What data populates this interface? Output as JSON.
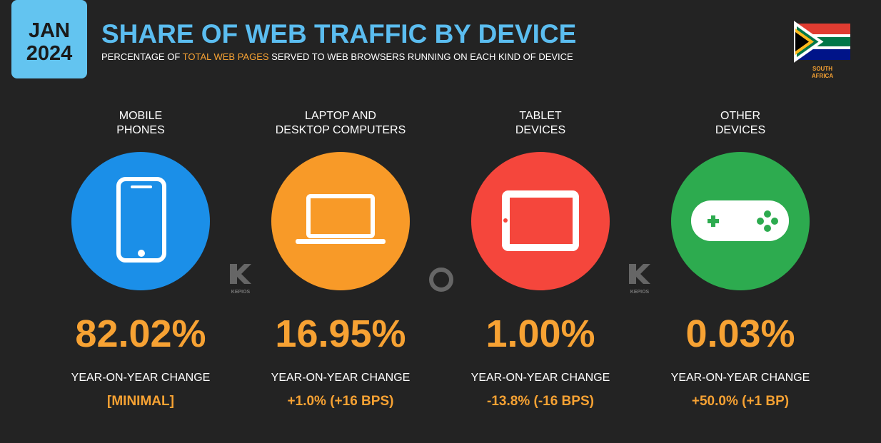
{
  "header": {
    "date_month": "JAN",
    "date_year": "2024",
    "title": "SHARE OF WEB TRAFFIC BY DEVICE",
    "subtitle": [
      "PERCENTAGE OF ",
      "TOTAL WEB PAGES",
      " SERVED TO WEB BROWSERS RUNNING ON EACH KIND OF DEVICE"
    ],
    "country": [
      "SOUTH",
      "AFRICA"
    ]
  },
  "watermarks": [
    "KEPIOS",
    "KEPIOS"
  ],
  "devices": [
    {
      "label": [
        "MOBILE",
        "PHONES"
      ],
      "value": "82.02%",
      "change_label": "YEAR-ON-YEAR CHANGE",
      "change": "[MINIMAL]"
    },
    {
      "label": [
        "LAPTOP AND",
        "DESKTOP COMPUTERS"
      ],
      "value": "16.95%",
      "change_label": "YEAR-ON-YEAR CHANGE",
      "change": "+1.0% (+16 BPS)"
    },
    {
      "label": [
        "TABLET",
        "DEVICES"
      ],
      "value": "1.00%",
      "change_label": "YEAR-ON-YEAR CHANGE",
      "change": "-13.8% (-16 BPS)"
    },
    {
      "label": [
        "OTHER",
        "DEVICES"
      ],
      "value": "0.03%",
      "change_label": "YEAR-ON-YEAR CHANGE",
      "change": "+50.0% (+1 BP)"
    }
  ]
}
